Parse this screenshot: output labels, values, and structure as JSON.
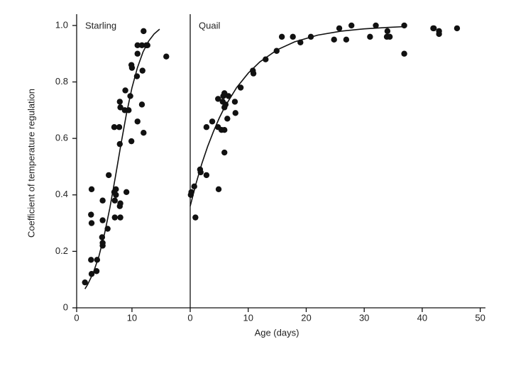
{
  "chart_data": {
    "type": "scatter",
    "ylabel": "Coefficient of temperature regulation",
    "xlabel": "Age (days)",
    "ylim": [
      0,
      1.04
    ],
    "yticks": [
      0,
      0.2,
      0.4,
      0.6,
      0.8,
      {
        "value": 1,
        "label": "1.0"
      }
    ],
    "color": "#111111",
    "panels": [
      {
        "label": "Starling",
        "xlim": [
          0,
          20.4
        ],
        "xticks": [
          0,
          10
        ],
        "points": {
          "x": [
            1.5,
            2.6,
            2.6,
            2.7,
            2.7,
            2.7,
            3.6,
            3.7,
            4.6,
            4.7,
            4.7,
            4.7,
            4.7,
            5.6,
            5.8,
            6.8,
            6.8,
            6.9,
            7.1,
            7.1,
            6.9,
            7.7,
            7.8,
            7.8,
            7.9,
            7.9,
            7.8,
            7.9,
            8.7,
            8.8,
            9.0,
            9.4,
            9.7,
            9.9,
            10,
            9.9,
            10.9,
            11.0,
            11.0,
            11.0,
            11.9,
            11.8,
            12.1,
            11.8,
            12.1,
            12.6,
            12.8,
            16.2
          ],
          "values": [
            0.09,
            0.17,
            0.33,
            0.3,
            0.42,
            0.12,
            0.13,
            0.17,
            0.25,
            0.22,
            0.23,
            0.31,
            0.38,
            0.28,
            0.47,
            0.64,
            0.41,
            0.38,
            0.42,
            0.4,
            0.32,
            0.64,
            0.58,
            0.36,
            0.32,
            0.37,
            0.73,
            0.71,
            0.7,
            0.77,
            0.41,
            0.7,
            0.75,
            0.86,
            0.85,
            0.59,
            0.82,
            0.9,
            0.93,
            0.66,
            0.84,
            0.72,
            0.62,
            0.93,
            0.98,
            0.93,
            0.93,
            0.89
          ]
        },
        "fit": {
          "x": [
            1.5,
            2,
            3,
            4,
            5,
            6,
            7,
            8,
            9,
            10,
            11,
            12,
            13,
            14,
            15
          ],
          "values": [
            0.067,
            0.083,
            0.124,
            0.181,
            0.259,
            0.354,
            0.464,
            0.579,
            0.686,
            0.779,
            0.851,
            0.906,
            0.944,
            0.97,
            0.987
          ]
        }
      },
      {
        "label": "Quail",
        "xlim": [
          0,
          50.9
        ],
        "xticks": [
          0,
          10,
          20,
          30,
          40,
          50
        ],
        "points": {
          "x": [
            0.1,
            0.2,
            0.9,
            0.7,
            1.7,
            1.8,
            2.8,
            2.8,
            3.8,
            4.8,
            4.8,
            4.9,
            5.4,
            5.6,
            5.7,
            5.9,
            5.9,
            6.1,
            5.9,
            5.9,
            6.4,
            6.6,
            7.7,
            7.8,
            8.7,
            10.8,
            10.9,
            13,
            14.9,
            15.8,
            17.7,
            19,
            20.8,
            24.8,
            25.7,
            26.9,
            27.8,
            31,
            32,
            33.9,
            34,
            34.4,
            36.9,
            36.9,
            41.9,
            42,
            42.9,
            42.9,
            46
          ],
          "values": [
            0.4,
            0.41,
            0.32,
            0.43,
            0.49,
            0.48,
            0.47,
            0.64,
            0.66,
            0.74,
            0.64,
            0.42,
            0.63,
            0.73,
            0.75,
            0.76,
            0.71,
            0.72,
            0.63,
            0.55,
            0.67,
            0.75,
            0.73,
            0.69,
            0.78,
            0.84,
            0.83,
            0.88,
            0.91,
            0.96,
            0.96,
            0.94,
            0.96,
            0.95,
            0.99,
            0.95,
            1.0,
            0.96,
            1.0,
            0.96,
            0.98,
            0.96,
            1.0,
            0.9,
            0.99,
            0.99,
            0.98,
            0.97,
            0.99
          ]
        },
        "fit": {
          "x": [
            0,
            1,
            2,
            3,
            4,
            5,
            6,
            8,
            10,
            12,
            15,
            18,
            22,
            26,
            30,
            34,
            37
          ],
          "values": [
            0.36,
            0.44,
            0.51,
            0.571,
            0.624,
            0.672,
            0.713,
            0.78,
            0.831,
            0.871,
            0.914,
            0.942,
            0.966,
            0.98,
            0.988,
            0.993,
            0.996
          ]
        }
      }
    ]
  }
}
